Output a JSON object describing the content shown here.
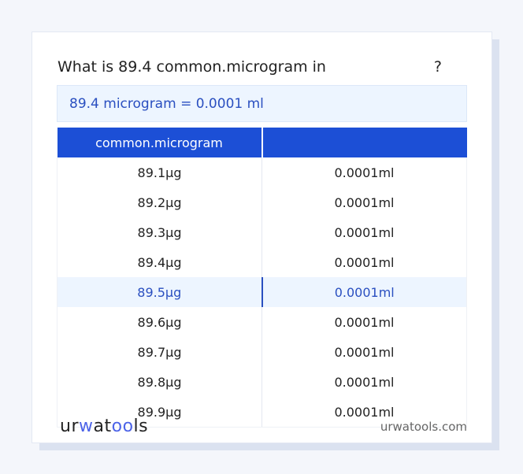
{
  "title": "What is 89.4 common.microgram in",
  "title_suffix": "?",
  "result": "89.4 microgram = 0.0001 ml",
  "table": {
    "headers": [
      "common.microgram",
      ""
    ],
    "rows": [
      [
        "89.1µg",
        "0.0001ml"
      ],
      [
        "89.2µg",
        "0.0001ml"
      ],
      [
        "89.3µg",
        "0.0001ml"
      ],
      [
        "89.4µg",
        "0.0001ml"
      ],
      [
        "89.5µg",
        "0.0001ml"
      ],
      [
        "89.6µg",
        "0.0001ml"
      ],
      [
        "89.7µg",
        "0.0001ml"
      ],
      [
        "89.8µg",
        "0.0001ml"
      ],
      [
        "89.9µg",
        "0.0001ml"
      ]
    ],
    "highlighted_row": 4
  },
  "footer": {
    "logo": "urwatools",
    "site": "urwatools.com"
  },
  "colors": {
    "accent": "#1c4fd6",
    "highlight_bg": "#edf5ff",
    "highlight_text": "#2a4fc0"
  }
}
